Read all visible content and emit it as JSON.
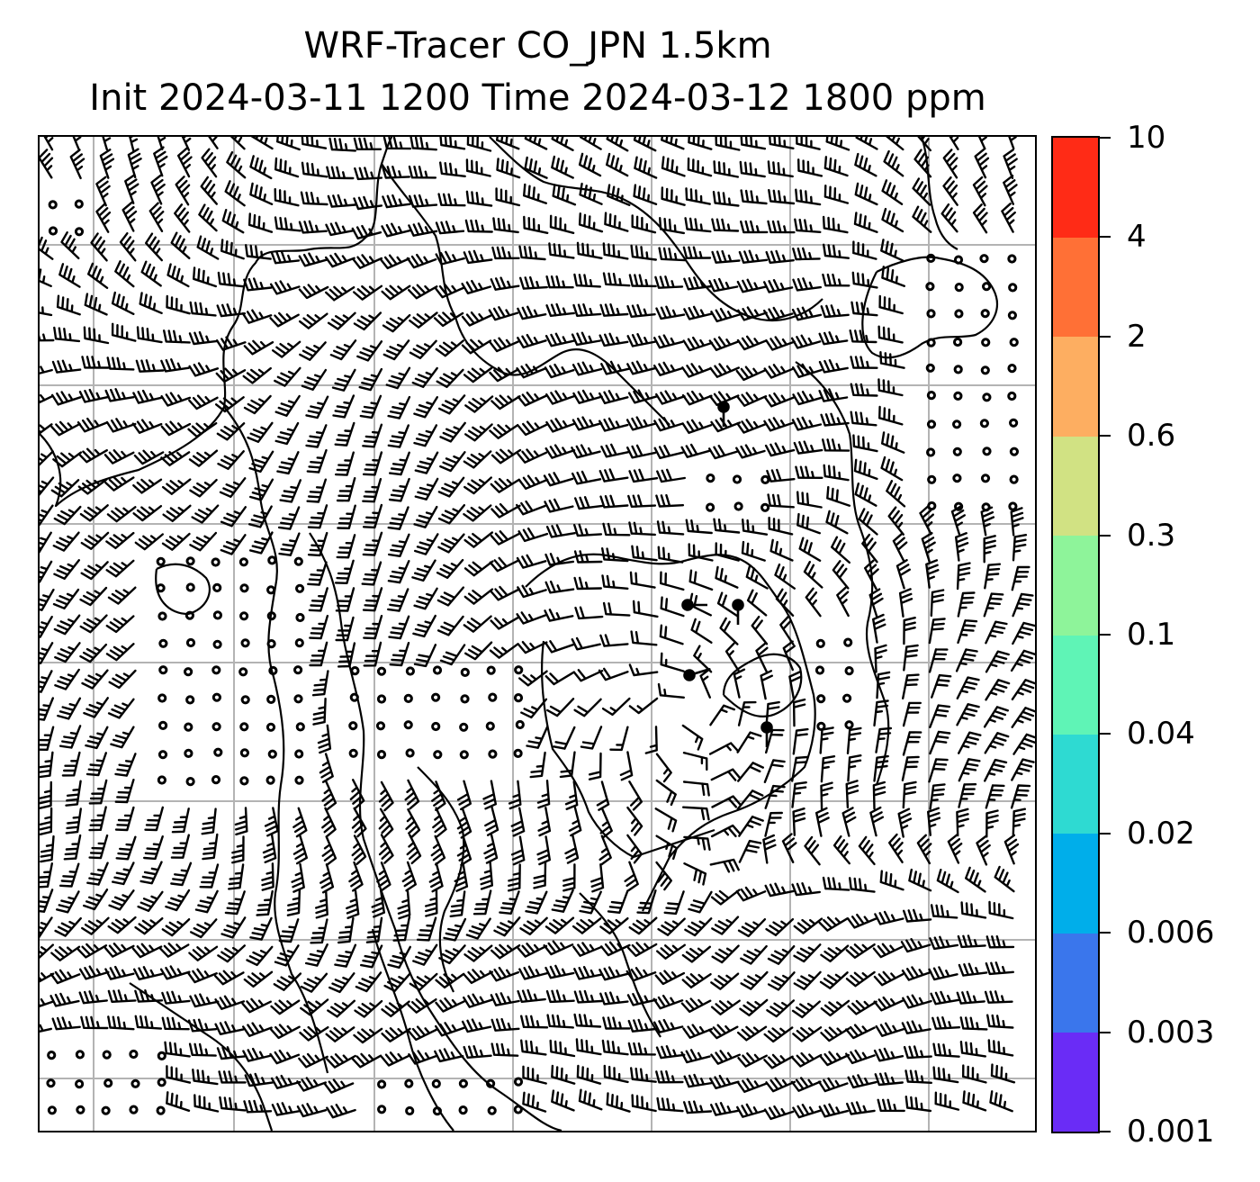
{
  "title": {
    "line1": "WRF-Tracer CO_JPN 1.5km",
    "line2": "Init 2024-03-11 1200 Time 2024-03-12 1800 ppm"
  },
  "colorbar": {
    "levels": [
      "0.001",
      "0.003",
      "0.006",
      "0.02",
      "0.04",
      "0.1",
      "0.3",
      "0.6",
      "2",
      "4",
      "10"
    ],
    "colors": [
      "#6a2cf6",
      "#3a76ec",
      "#00aeea",
      "#2edad2",
      "#5ff4b6",
      "#8ef49a",
      "#d1e283",
      "#fdae61",
      "#ff7036",
      "#ff2b16"
    ]
  },
  "map": {
    "grid_color": "#b3b3b3",
    "barb_color": "#000000",
    "coast_color": "#000000"
  }
}
